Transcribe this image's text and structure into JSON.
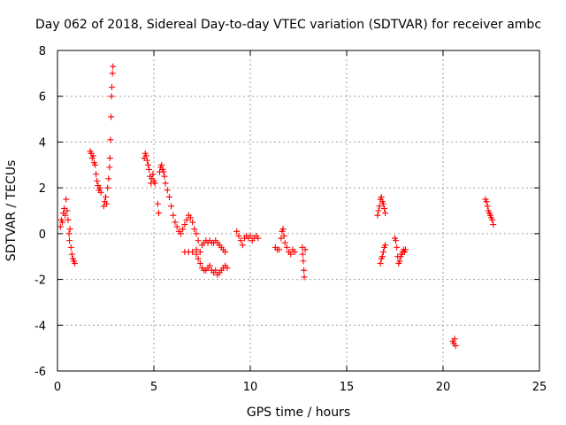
{
  "chart_data": {
    "type": "scatter",
    "title": "Day 062 of 2018, Sidereal Day-to-day VTEC variation (SDTVAR) for receiver ambc",
    "xlabel": "GPS time / hours",
    "ylabel": "SDTVAR / TECUs",
    "xlim": [
      0,
      25
    ],
    "ylim": [
      -6,
      8
    ],
    "xticks": [
      0,
      5,
      10,
      15,
      20,
      25
    ],
    "yticks": [
      -6,
      -4,
      -2,
      0,
      2,
      4,
      6,
      8
    ],
    "grid": true,
    "marker": "+",
    "color": "#ff0000",
    "series": [
      {
        "name": "SDTVAR",
        "segments": [
          [
            [
              0.15,
              0.3
            ],
            [
              0.2,
              0.6
            ],
            [
              0.25,
              0.5
            ],
            [
              0.3,
              0.9
            ],
            [
              0.35,
              1.1
            ],
            [
              0.4,
              0.8
            ],
            [
              0.45,
              1.5
            ],
            [
              0.5,
              1.0
            ],
            [
              0.55,
              0.6
            ],
            [
              0.6,
              0.0
            ],
            [
              0.62,
              -0.3
            ],
            [
              0.65,
              0.2
            ],
            [
              0.7,
              -0.6
            ],
            [
              0.75,
              -0.9
            ],
            [
              0.8,
              -1.1
            ],
            [
              0.85,
              -1.2
            ],
            [
              0.9,
              -1.3
            ]
          ],
          [
            [
              1.7,
              3.6
            ],
            [
              1.75,
              3.5
            ],
            [
              1.8,
              3.3
            ],
            [
              1.85,
              3.4
            ],
            [
              1.9,
              3.1
            ],
            [
              1.95,
              3.0
            ],
            [
              2.0,
              2.6
            ],
            [
              2.05,
              2.3
            ],
            [
              2.1,
              2.1
            ],
            [
              2.15,
              1.9
            ],
            [
              2.2,
              2.0
            ],
            [
              2.25,
              1.8
            ]
          ],
          [
            [
              2.4,
              1.2
            ],
            [
              2.45,
              1.4
            ],
            [
              2.5,
              1.6
            ],
            [
              2.55,
              1.3
            ],
            [
              2.6,
              2.0
            ],
            [
              2.65,
              2.4
            ],
            [
              2.7,
              2.9
            ],
            [
              2.72,
              3.3
            ],
            [
              2.75,
              4.1
            ],
            [
              2.78,
              5.1
            ],
            [
              2.8,
              6.0
            ],
            [
              2.82,
              6.4
            ],
            [
              2.85,
              7.0
            ],
            [
              2.88,
              7.3
            ]
          ],
          [
            [
              4.5,
              3.3
            ],
            [
              4.55,
              3.5
            ],
            [
              4.6,
              3.4
            ],
            [
              4.65,
              3.2
            ],
            [
              4.7,
              3.0
            ],
            [
              4.75,
              2.8
            ],
            [
              4.8,
              2.5
            ],
            [
              4.85,
              2.2
            ],
            [
              4.9,
              2.4
            ],
            [
              4.95,
              2.6
            ],
            [
              5.0,
              2.3
            ],
            [
              5.05,
              2.2
            ]
          ],
          [
            [
              5.2,
              1.3
            ],
            [
              5.25,
              0.9
            ]
          ],
          [
            [
              5.3,
              2.7
            ],
            [
              5.35,
              2.9
            ],
            [
              5.4,
              3.0
            ],
            [
              5.45,
              2.8
            ],
            [
              5.5,
              2.7
            ],
            [
              5.55,
              2.5
            ],
            [
              5.6,
              2.2
            ],
            [
              5.7,
              1.9
            ],
            [
              5.8,
              1.6
            ],
            [
              5.9,
              1.2
            ],
            [
              6.0,
              0.8
            ],
            [
              6.1,
              0.5
            ],
            [
              6.2,
              0.3
            ],
            [
              6.3,
              0.1
            ],
            [
              6.4,
              0.0
            ],
            [
              6.5,
              0.2
            ],
            [
              6.6,
              0.4
            ],
            [
              6.7,
              0.6
            ],
            [
              6.8,
              0.8
            ],
            [
              6.9,
              0.7
            ],
            [
              7.0,
              0.5
            ],
            [
              7.1,
              0.2
            ],
            [
              7.2,
              0.0
            ],
            [
              7.3,
              -0.3
            ]
          ],
          [
            [
              6.6,
              -0.8
            ],
            [
              6.8,
              -0.8
            ],
            [
              7.0,
              -0.8
            ],
            [
              7.2,
              -0.7
            ],
            [
              7.4,
              -0.8
            ],
            [
              7.5,
              -0.5
            ],
            [
              7.6,
              -0.4
            ],
            [
              7.7,
              -0.3
            ],
            [
              7.8,
              -0.4
            ],
            [
              7.9,
              -0.3
            ],
            [
              8.0,
              -0.4
            ],
            [
              8.1,
              -0.4
            ],
            [
              8.2,
              -0.3
            ],
            [
              8.3,
              -0.4
            ],
            [
              8.4,
              -0.5
            ],
            [
              8.5,
              -0.6
            ],
            [
              8.6,
              -0.7
            ],
            [
              8.7,
              -0.8
            ]
          ],
          [
            [
              7.2,
              -0.9
            ],
            [
              7.3,
              -1.1
            ],
            [
              7.4,
              -1.3
            ],
            [
              7.5,
              -1.5
            ],
            [
              7.6,
              -1.6
            ],
            [
              7.7,
              -1.6
            ],
            [
              7.8,
              -1.5
            ],
            [
              7.9,
              -1.4
            ],
            [
              8.0,
              -1.6
            ],
            [
              8.1,
              -1.7
            ],
            [
              8.2,
              -1.6
            ],
            [
              8.3,
              -1.8
            ],
            [
              8.4,
              -1.7
            ],
            [
              8.5,
              -1.6
            ],
            [
              8.6,
              -1.5
            ],
            [
              8.7,
              -1.4
            ],
            [
              8.8,
              -1.5
            ]
          ],
          [
            [
              9.3,
              0.1
            ],
            [
              9.4,
              -0.1
            ],
            [
              9.5,
              -0.3
            ],
            [
              9.6,
              -0.5
            ],
            [
              9.7,
              -0.2
            ],
            [
              9.8,
              -0.1
            ],
            [
              9.9,
              -0.2
            ],
            [
              10.0,
              -0.1
            ],
            [
              10.1,
              -0.3
            ],
            [
              10.2,
              -0.2
            ],
            [
              10.3,
              -0.1
            ],
            [
              10.4,
              -0.2
            ]
          ],
          [
            [
              11.3,
              -0.6
            ],
            [
              11.4,
              -0.7
            ],
            [
              11.5,
              -0.7
            ]
          ],
          [
            [
              11.6,
              -0.2
            ],
            [
              11.65,
              0.1
            ],
            [
              11.7,
              0.2
            ],
            [
              11.75,
              -0.1
            ],
            [
              11.8,
              -0.4
            ]
          ],
          [
            [
              11.9,
              -0.6
            ],
            [
              12.0,
              -0.8
            ],
            [
              12.1,
              -0.9
            ],
            [
              12.2,
              -0.7
            ],
            [
              12.3,
              -0.8
            ]
          ],
          [
            [
              12.7,
              -0.6
            ],
            [
              12.72,
              -0.9
            ],
            [
              12.75,
              -1.2
            ],
            [
              12.78,
              -1.6
            ],
            [
              12.8,
              -1.9
            ],
            [
              12.85,
              -0.7
            ]
          ],
          [
            [
              16.6,
              0.8
            ],
            [
              16.65,
              1.0
            ],
            [
              16.7,
              1.2
            ],
            [
              16.75,
              1.5
            ],
            [
              16.8,
              1.6
            ],
            [
              16.85,
              1.4
            ],
            [
              16.9,
              1.3
            ],
            [
              16.95,
              1.1
            ],
            [
              17.0,
              0.9
            ]
          ],
          [
            [
              16.75,
              -1.3
            ],
            [
              16.8,
              -1.1
            ],
            [
              16.85,
              -1.0
            ],
            [
              16.9,
              -0.8
            ],
            [
              16.95,
              -0.6
            ],
            [
              17.0,
              -0.5
            ]
          ],
          [
            [
              17.5,
              -0.2
            ],
            [
              17.55,
              -0.3
            ],
            [
              17.6,
              -0.6
            ],
            [
              17.65,
              -1.0
            ],
            [
              17.7,
              -1.3
            ],
            [
              17.75,
              -1.2
            ],
            [
              17.8,
              -1.0
            ],
            [
              17.85,
              -0.9
            ],
            [
              17.9,
              -0.8
            ],
            [
              17.95,
              -0.7
            ],
            [
              18.0,
              -0.8
            ],
            [
              18.05,
              -0.7
            ]
          ],
          [
            [
              20.5,
              -4.7
            ],
            [
              20.55,
              -4.8
            ],
            [
              20.6,
              -4.6
            ],
            [
              20.65,
              -4.9
            ]
          ],
          [
            [
              22.2,
              1.5
            ],
            [
              22.25,
              1.4
            ],
            [
              22.3,
              1.2
            ],
            [
              22.35,
              1.0
            ],
            [
              22.4,
              0.9
            ],
            [
              22.45,
              0.8
            ],
            [
              22.5,
              0.7
            ],
            [
              22.55,
              0.6
            ],
            [
              22.6,
              0.4
            ]
          ]
        ]
      }
    ]
  }
}
